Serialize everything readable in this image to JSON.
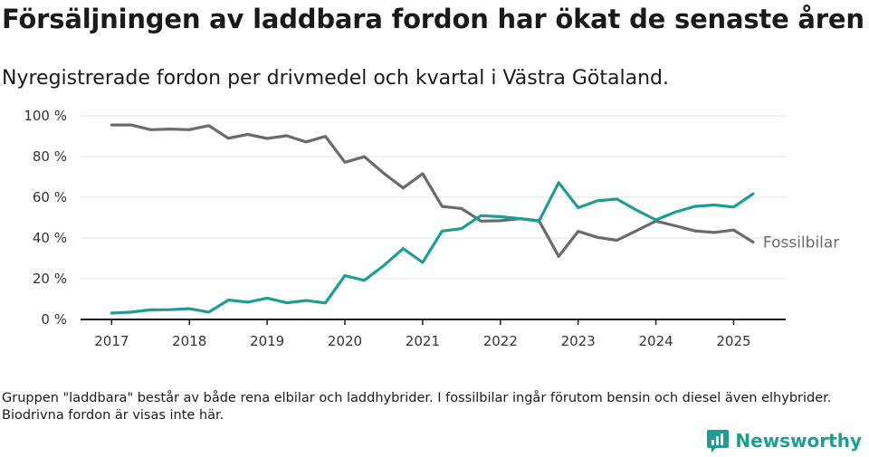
{
  "header": {
    "title": "Försäljningen av laddbara fordon har ökat de senaste åren",
    "subtitle": "Nyregistrerade fordon per drivmedel och kvartal i Västra Götaland."
  },
  "footnote": "Gruppen \"laddbara\" består av både rena elbilar och laddhybrider. I fossilbilar ingår förutom bensin och diesel även elhybrider. Biodrivna fordon är visas inte här.",
  "brand": {
    "name": "Newsworthy",
    "icon": "newsworthy-logo-icon",
    "color": "#1a9e96"
  },
  "chart_data": {
    "type": "line",
    "x": [
      2017.0,
      2017.25,
      2017.5,
      2017.75,
      2018.0,
      2018.25,
      2018.5,
      2018.75,
      2019.0,
      2019.25,
      2019.5,
      2019.75,
      2020.0,
      2020.25,
      2020.5,
      2020.75,
      2021.0,
      2021.25,
      2021.5,
      2021.75,
      2022.0,
      2022.25,
      2022.5,
      2022.75,
      2023.0,
      2023.25,
      2023.5,
      2023.75,
      2024.0,
      2024.25,
      2024.5,
      2024.75,
      2025.0,
      2025.25
    ],
    "series": [
      {
        "name": "Fossilbilar",
        "color": "#6b6b6b",
        "values": [
          95.5,
          95.5,
          93.2,
          93.5,
          93.2,
          95.2,
          89.0,
          90.9,
          88.9,
          90.2,
          87.2,
          89.9,
          77.2,
          79.9,
          71.8,
          64.6,
          71.6,
          55.5,
          54.5,
          48.3,
          48.5,
          49.5,
          48.3,
          31.0,
          43.3,
          40.3,
          38.9,
          43.6,
          48.3,
          46.0,
          43.5,
          42.7,
          43.9,
          38.0
        ]
      },
      {
        "name": "",
        "color": "#1a9e96",
        "values": [
          3.1,
          3.6,
          4.7,
          4.8,
          5.3,
          3.6,
          9.5,
          8.5,
          10.5,
          8.2,
          9.3,
          8.1,
          21.5,
          19.2,
          26.5,
          34.8,
          28.0,
          43.4,
          44.6,
          51.0,
          50.5,
          49.5,
          48.5,
          67.2,
          54.9,
          58.3,
          59.1,
          53.7,
          48.9,
          52.7,
          55.5,
          56.2,
          55.2,
          61.7
        ]
      }
    ],
    "xticks": [
      2017,
      2018,
      2019,
      2020,
      2021,
      2022,
      2023,
      2024,
      2025
    ],
    "xtick_labels": [
      "2017",
      "2018",
      "2019",
      "2020",
      "2021",
      "2022",
      "2023",
      "2024",
      "2025"
    ],
    "yticks": [
      0,
      20,
      40,
      60,
      80,
      100
    ],
    "ytick_labels": [
      "0 %",
      "20 %",
      "40 %",
      "60 %",
      "80 %",
      "100 %"
    ],
    "xlim": [
      2016.6,
      2025.67
    ],
    "ylim": [
      0,
      100
    ],
    "grid": true,
    "gridColor": "#e3e3e3",
    "axisColor": "#1a1a1a",
    "xlabel": "",
    "ylabel": ""
  }
}
